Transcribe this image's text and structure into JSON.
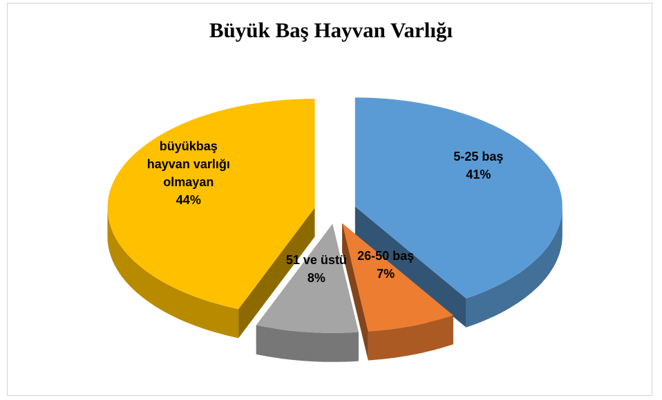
{
  "chart_data": {
    "type": "pie",
    "title": "Büyük Baş Hayvan Varlığı",
    "categories": [
      "5-25 baş",
      "26-50 baş",
      "51 ve üstü",
      "büyükbaş hayvan varlığı olmayan"
    ],
    "values": [
      41,
      7,
      8,
      44
    ],
    "value_labels": [
      "41%",
      "7%",
      "8%",
      "44%"
    ],
    "colors": [
      "#5b9bd5",
      "#ed7d31",
      "#a5a5a5",
      "#ffc000"
    ]
  }
}
